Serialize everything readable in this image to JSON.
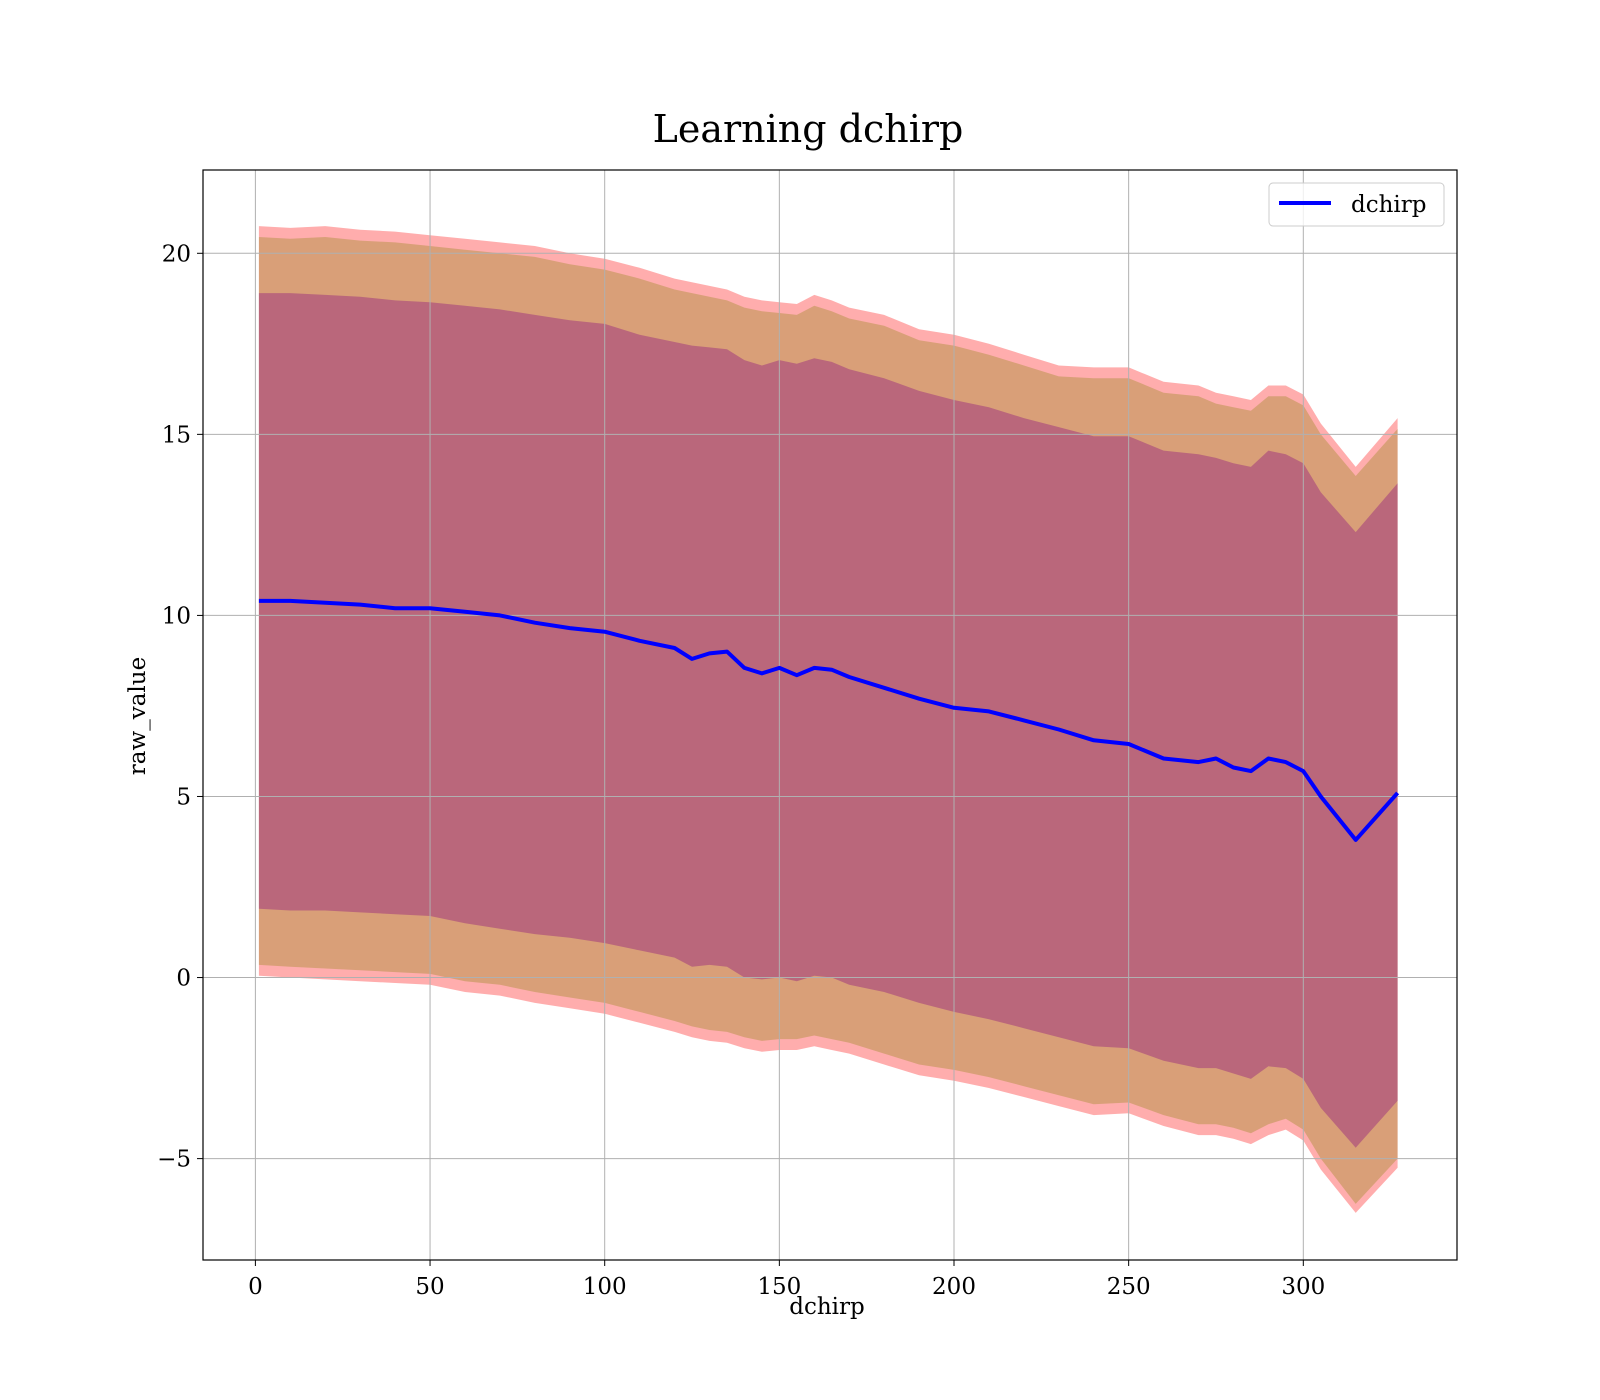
{
  "chart_data": {
    "type": "line",
    "title": "Learning dchirp",
    "xlabel": "dchirp",
    "ylabel": "raw_value",
    "xlim": [
      -15,
      344
    ],
    "ylim": [
      -7.8,
      22.3
    ],
    "xticks": [
      0,
      50,
      100,
      150,
      200,
      250,
      300
    ],
    "xtick_labels": [
      "0",
      "50",
      "100",
      "150",
      "200",
      "250",
      "300"
    ],
    "yticks": [
      -5,
      0,
      5,
      10,
      15,
      20
    ],
    "ytick_labels": [
      "−5",
      "0",
      "5",
      "10",
      "15",
      "20"
    ],
    "grid": true,
    "legend": {
      "position": "upper right",
      "entries": [
        "dchirp"
      ]
    },
    "colors": {
      "line": "#0000ff",
      "outer_band": "#ff0000",
      "middle_band": "#808000",
      "inner_band": "#800080"
    },
    "series": [
      {
        "name": "dchirp",
        "x": [
          1,
          10,
          20,
          30,
          40,
          50,
          60,
          70,
          80,
          90,
          100,
          110,
          120,
          125,
          130,
          135,
          140,
          145,
          150,
          155,
          160,
          165,
          170,
          180,
          190,
          200,
          210,
          220,
          230,
          240,
          250,
          260,
          270,
          275,
          280,
          285,
          290,
          295,
          300,
          305,
          315,
          327
        ],
        "y": [
          10.4,
          10.4,
          10.35,
          10.3,
          10.2,
          10.2,
          10.1,
          10.0,
          9.8,
          9.65,
          9.55,
          9.3,
          9.1,
          8.8,
          8.95,
          9.0,
          8.55,
          8.4,
          8.55,
          8.35,
          8.55,
          8.5,
          8.3,
          8.0,
          7.7,
          7.45,
          7.35,
          7.1,
          6.85,
          6.55,
          6.45,
          6.05,
          5.95,
          6.05,
          5.8,
          5.7,
          6.05,
          5.95,
          5.7,
          5.0,
          3.8,
          5.1
        ]
      }
    ],
    "bands": [
      {
        "level": "outer",
        "lower": [
          0.05,
          0.0,
          -0.05,
          -0.1,
          -0.15,
          -0.2,
          -0.4,
          -0.5,
          -0.7,
          -0.85,
          -1.0,
          -1.25,
          -1.5,
          -1.65,
          -1.75,
          -1.8,
          -1.95,
          -2.05,
          -2.0,
          -2.0,
          -1.9,
          -2.0,
          -2.1,
          -2.4,
          -2.7,
          -2.85,
          -3.05,
          -3.3,
          -3.55,
          -3.8,
          -3.75,
          -4.1,
          -4.35,
          -4.35,
          -4.45,
          -4.6,
          -4.35,
          -4.2,
          -4.5,
          -5.3,
          -6.5,
          -5.25
        ],
        "upper": [
          20.75,
          20.7,
          20.75,
          20.65,
          20.6,
          20.5,
          20.4,
          20.3,
          20.2,
          20.0,
          19.85,
          19.6,
          19.3,
          19.2,
          19.1,
          19.0,
          18.8,
          18.7,
          18.65,
          18.6,
          18.85,
          18.7,
          18.5,
          18.3,
          17.9,
          17.75,
          17.5,
          17.2,
          16.9,
          16.85,
          16.85,
          16.45,
          16.35,
          16.15,
          16.05,
          15.95,
          16.35,
          16.35,
          16.1,
          15.3,
          14.1,
          15.45
        ]
      },
      {
        "level": "middle",
        "lower": [
          0.35,
          0.3,
          0.25,
          0.2,
          0.15,
          0.1,
          -0.1,
          -0.2,
          -0.4,
          -0.55,
          -0.7,
          -0.95,
          -1.2,
          -1.35,
          -1.45,
          -1.5,
          -1.65,
          -1.75,
          -1.7,
          -1.7,
          -1.6,
          -1.7,
          -1.8,
          -2.1,
          -2.4,
          -2.55,
          -2.75,
          -3.0,
          -3.25,
          -3.5,
          -3.45,
          -3.8,
          -4.05,
          -4.05,
          -4.15,
          -4.3,
          -4.05,
          -3.9,
          -4.2,
          -5.0,
          -6.25,
          -5.0
        ],
        "upper": [
          20.45,
          20.4,
          20.45,
          20.35,
          20.3,
          20.2,
          20.1,
          20.0,
          19.9,
          19.7,
          19.55,
          19.3,
          19.0,
          18.9,
          18.8,
          18.7,
          18.5,
          18.4,
          18.35,
          18.3,
          18.55,
          18.4,
          18.2,
          18.0,
          17.6,
          17.45,
          17.2,
          16.9,
          16.6,
          16.55,
          16.55,
          16.15,
          16.05,
          15.85,
          15.75,
          15.65,
          16.05,
          16.05,
          15.8,
          15.0,
          13.85,
          15.15
        ]
      },
      {
        "level": "inner",
        "lower": [
          1.9,
          1.85,
          1.85,
          1.8,
          1.75,
          1.7,
          1.5,
          1.35,
          1.2,
          1.1,
          0.95,
          0.75,
          0.55,
          0.3,
          0.35,
          0.3,
          0.0,
          -0.05,
          0.0,
          -0.1,
          0.05,
          0.0,
          -0.2,
          -0.4,
          -0.7,
          -0.95,
          -1.15,
          -1.4,
          -1.65,
          -1.9,
          -1.95,
          -2.3,
          -2.5,
          -2.5,
          -2.65,
          -2.8,
          -2.45,
          -2.5,
          -2.8,
          -3.6,
          -4.7,
          -3.4
        ],
        "upper": [
          18.9,
          18.9,
          18.85,
          18.8,
          18.7,
          18.65,
          18.55,
          18.45,
          18.3,
          18.15,
          18.05,
          17.75,
          17.55,
          17.45,
          17.4,
          17.35,
          17.05,
          16.9,
          17.05,
          16.95,
          17.1,
          17.0,
          16.8,
          16.55,
          16.2,
          15.95,
          15.75,
          15.45,
          15.2,
          14.95,
          14.95,
          14.55,
          14.45,
          14.35,
          14.2,
          14.1,
          14.55,
          14.45,
          14.2,
          13.4,
          12.3,
          13.65
        ]
      }
    ]
  }
}
